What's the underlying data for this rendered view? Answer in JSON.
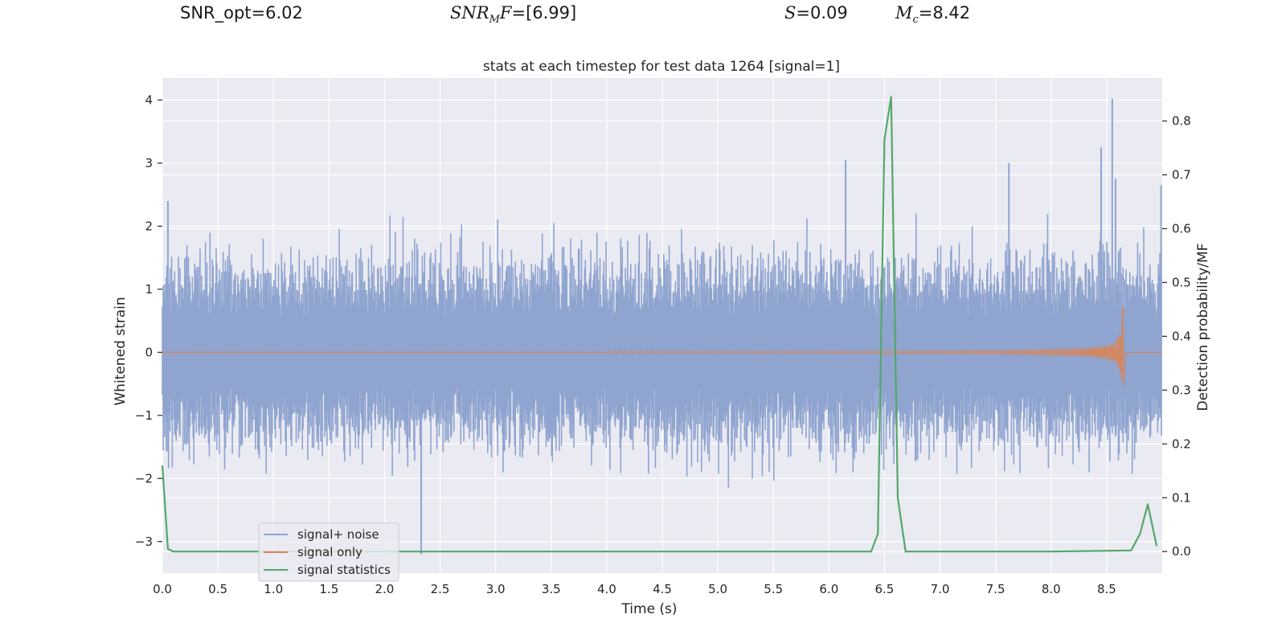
{
  "header": {
    "snr_opt": "SNR_opt=6.02",
    "snr_mf_sym": "SNR",
    "snr_mf_sub": "M",
    "snr_mf_sym2": "F",
    "snr_mf_val": "=[6.99]",
    "s_sym": "S",
    "s_val": "=0.09",
    "mc_sym": "M",
    "mc_sub": "c",
    "mc_val": "=8.42"
  },
  "chart_data": {
    "type": "line",
    "title": "stats at each timestep for test data 1264 [signal=1]",
    "xlabel": "Time (s)",
    "ylabel": "Whitened strain",
    "y2label": "Detection probability/MF",
    "xlim": [
      0.0,
      9.0
    ],
    "ylim": [
      -3.5,
      4.35
    ],
    "y2lim": [
      -0.04,
      0.88
    ],
    "xticks": [
      0.0,
      0.5,
      1.0,
      1.5,
      2.0,
      2.5,
      3.0,
      3.5,
      4.0,
      4.5,
      5.0,
      5.5,
      6.0,
      6.5,
      7.0,
      7.5,
      8.0,
      8.5
    ],
    "xtick_labels": [
      "0.0",
      "0.5",
      "1.0",
      "1.5",
      "2.0",
      "2.5",
      "3.0",
      "3.5",
      "4.0",
      "4.5",
      "5.0",
      "5.5",
      "6.0",
      "6.5",
      "7.0",
      "7.5",
      "8.0",
      "8.5"
    ],
    "yticks": [
      -3,
      -2,
      -1,
      0,
      1,
      2,
      3,
      4
    ],
    "ytick_labels": [
      "−3",
      "−2",
      "−1",
      "0",
      "1",
      "2",
      "3",
      "4"
    ],
    "y2ticks": [
      0.0,
      0.1,
      0.2,
      0.3,
      0.4,
      0.5,
      0.6,
      0.7,
      0.8
    ],
    "y2tick_labels": [
      "0.0",
      "0.1",
      "0.2",
      "0.3",
      "0.4",
      "0.5",
      "0.6",
      "0.7",
      "0.8"
    ],
    "grid": true,
    "legend_position": "bottom-left",
    "series": [
      {
        "name": "signal+ noise",
        "axis": "left",
        "color": "#8fa4cf",
        "description": "whitened noise plus signal, amplitude roughly within -2.5..2.5 with occasional peaks",
        "envelope_peaks": [
          [
            0.05,
            2.4
          ],
          [
            2.33,
            -3.2
          ],
          [
            6.15,
            3.05
          ],
          [
            7.62,
            3.0
          ],
          [
            8.45,
            3.25
          ],
          [
            8.55,
            4.02
          ],
          [
            8.58,
            2.75
          ],
          [
            8.99,
            2.65
          ]
        ]
      },
      {
        "name": "signal only",
        "axis": "left",
        "color": "#dd8452",
        "description": "chirp growing in amplitude until merger near t=8.65 s",
        "chirp": {
          "t_start": 4.0,
          "t_merger": 8.65,
          "peak_amplitude": 0.8
        }
      },
      {
        "name": "signal statistics",
        "axis": "right",
        "color": "#55a868",
        "x": [
          0.0,
          0.05,
          0.1,
          0.5,
          1.0,
          2.0,
          3.0,
          4.0,
          5.0,
          6.0,
          6.38,
          6.44,
          6.5,
          6.56,
          6.62,
          6.69,
          7.0,
          8.0,
          8.72,
          8.8,
          8.87,
          8.95
        ],
        "values": [
          0.16,
          0.005,
          0.0,
          0.0,
          0.0,
          0.0,
          0.0,
          0.0,
          0.0,
          0.0,
          0.0,
          0.033,
          0.765,
          0.845,
          0.1,
          0.0,
          0.0,
          0.0,
          0.002,
          0.033,
          0.088,
          0.01
        ]
      }
    ],
    "legend": [
      "signal+ noise",
      "signal only",
      "signal statistics"
    ]
  }
}
